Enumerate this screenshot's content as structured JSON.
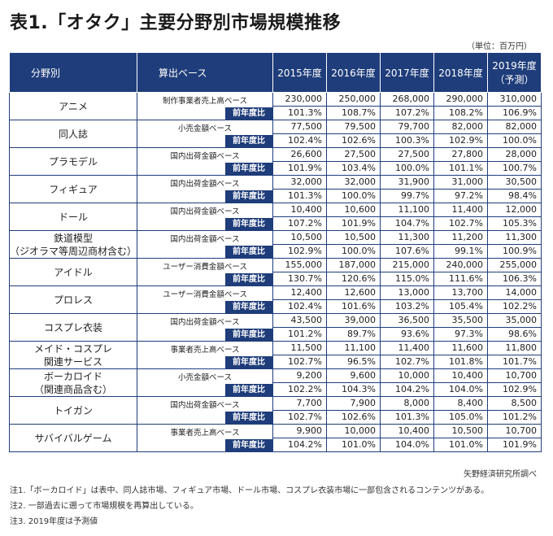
{
  "title": "表1.「オタク」主要分野別市場規模推移",
  "unit": "（単位：百万円）",
  "headers": {
    "field": "分野別",
    "basis": "算出ベース",
    "y2015": "2015年度",
    "y2016": "2016年度",
    "y2017": "2017年度",
    "y2018": "2018年度",
    "y2019a": "2019年度",
    "y2019b": "（予測）"
  },
  "yoy_label": "前年度比",
  "rows": [
    {
      "name": [
        "アニメ"
      ],
      "basis": "制作事業者売上高ベース",
      "values": [
        "230,000",
        "250,000",
        "268,000",
        "290,000",
        "310,000"
      ],
      "ratios": [
        "101.3%",
        "108.7%",
        "107.2%",
        "108.2%",
        "106.9%"
      ]
    },
    {
      "name": [
        "同人誌"
      ],
      "basis": "小売金額ベース",
      "values": [
        "77,500",
        "79,500",
        "79,700",
        "82,000",
        "82,000"
      ],
      "ratios": [
        "102.4%",
        "102.6%",
        "100.3%",
        "102.9%",
        "100.0%"
      ]
    },
    {
      "name": [
        "プラモデル"
      ],
      "basis": "国内出荷金額ベース",
      "values": [
        "26,600",
        "27,500",
        "27,500",
        "27,800",
        "28,000"
      ],
      "ratios": [
        "101.9%",
        "103.4%",
        "100.0%",
        "101.1%",
        "100.7%"
      ]
    },
    {
      "name": [
        "フィギュア"
      ],
      "basis": "国内出荷金額ベース",
      "values": [
        "32,000",
        "32,000",
        "31,900",
        "31,000",
        "30,500"
      ],
      "ratios": [
        "101.3%",
        "100.0%",
        "99.7%",
        "97.2%",
        "98.4%"
      ]
    },
    {
      "name": [
        "ドール"
      ],
      "basis": "国内出荷金額ベース",
      "values": [
        "10,400",
        "10,600",
        "11,100",
        "11,400",
        "12,000"
      ],
      "ratios": [
        "107.2%",
        "101.9%",
        "104.7%",
        "102.7%",
        "105.3%"
      ]
    },
    {
      "name": [
        "鉄道模型",
        "（ジオラマ等周辺商材含む）"
      ],
      "basis": "国内出荷金額ベース",
      "values": [
        "10,500",
        "10,500",
        "11,300",
        "11,200",
        "11,300"
      ],
      "ratios": [
        "102.9%",
        "100.0%",
        "107.6%",
        "99.1%",
        "100.9%"
      ]
    },
    {
      "name": [
        "アイドル"
      ],
      "basis": "ユーザー消費金額ベース",
      "values": [
        "155,000",
        "187,000",
        "215,000",
        "240,000",
        "255,000"
      ],
      "ratios": [
        "130.7%",
        "120.6%",
        "115.0%",
        "111.6%",
        "106.3%"
      ]
    },
    {
      "name": [
        "プロレス"
      ],
      "basis": "ユーザー消費金額ベース",
      "values": [
        "12,400",
        "12,600",
        "13,000",
        "13,700",
        "14,000"
      ],
      "ratios": [
        "102.4%",
        "101.6%",
        "103.2%",
        "105.4%",
        "102.2%"
      ]
    },
    {
      "name": [
        "コスプレ衣装"
      ],
      "basis": "国内出荷金額ベース",
      "values": [
        "43,500",
        "39,000",
        "36,500",
        "35,500",
        "35,000"
      ],
      "ratios": [
        "101.2%",
        "89.7%",
        "93.6%",
        "97.3%",
        "98.6%"
      ]
    },
    {
      "name": [
        "メイド・コスプレ",
        "関連サービス"
      ],
      "basis": "事業者売上高ベース",
      "values": [
        "11,500",
        "11,100",
        "11,400",
        "11,600",
        "11,800"
      ],
      "ratios": [
        "102.7%",
        "96.5%",
        "102.7%",
        "101.8%",
        "101.7%"
      ]
    },
    {
      "name": [
        "ボーカロイド",
        "（関連商品含む）"
      ],
      "basis": "小売金額ベース",
      "values": [
        "9,200",
        "9,600",
        "10,000",
        "10,400",
        "10,700"
      ],
      "ratios": [
        "102.2%",
        "104.3%",
        "104.2%",
        "104.0%",
        "102.9%"
      ]
    },
    {
      "name": [
        "トイガン"
      ],
      "basis": "国内出荷金額ベース",
      "values": [
        "7,700",
        "7,900",
        "8,000",
        "8,400",
        "8,500"
      ],
      "ratios": [
        "102.7%",
        "102.6%",
        "101.3%",
        "105.0%",
        "101.2%"
      ]
    },
    {
      "name": [
        "サバイバルゲーム"
      ],
      "basis": "事業者売上高ベース",
      "values": [
        "9,900",
        "10,000",
        "10,400",
        "10,500",
        "10,700"
      ],
      "ratios": [
        "104.2%",
        "101.0%",
        "104.0%",
        "101.0%",
        "101.9%"
      ]
    }
  ],
  "source": "矢野経済研究所調べ",
  "notes": [
    "注1.「ボーカロイド」は表中、同人誌市場、フィギュア市場、ドール市場、コスプレ衣装市場に一部包含されるコンテンツがある。",
    "注2. 一部過去に遡って市場規模を再算出している。",
    "注3. 2019年度は予測値"
  ]
}
